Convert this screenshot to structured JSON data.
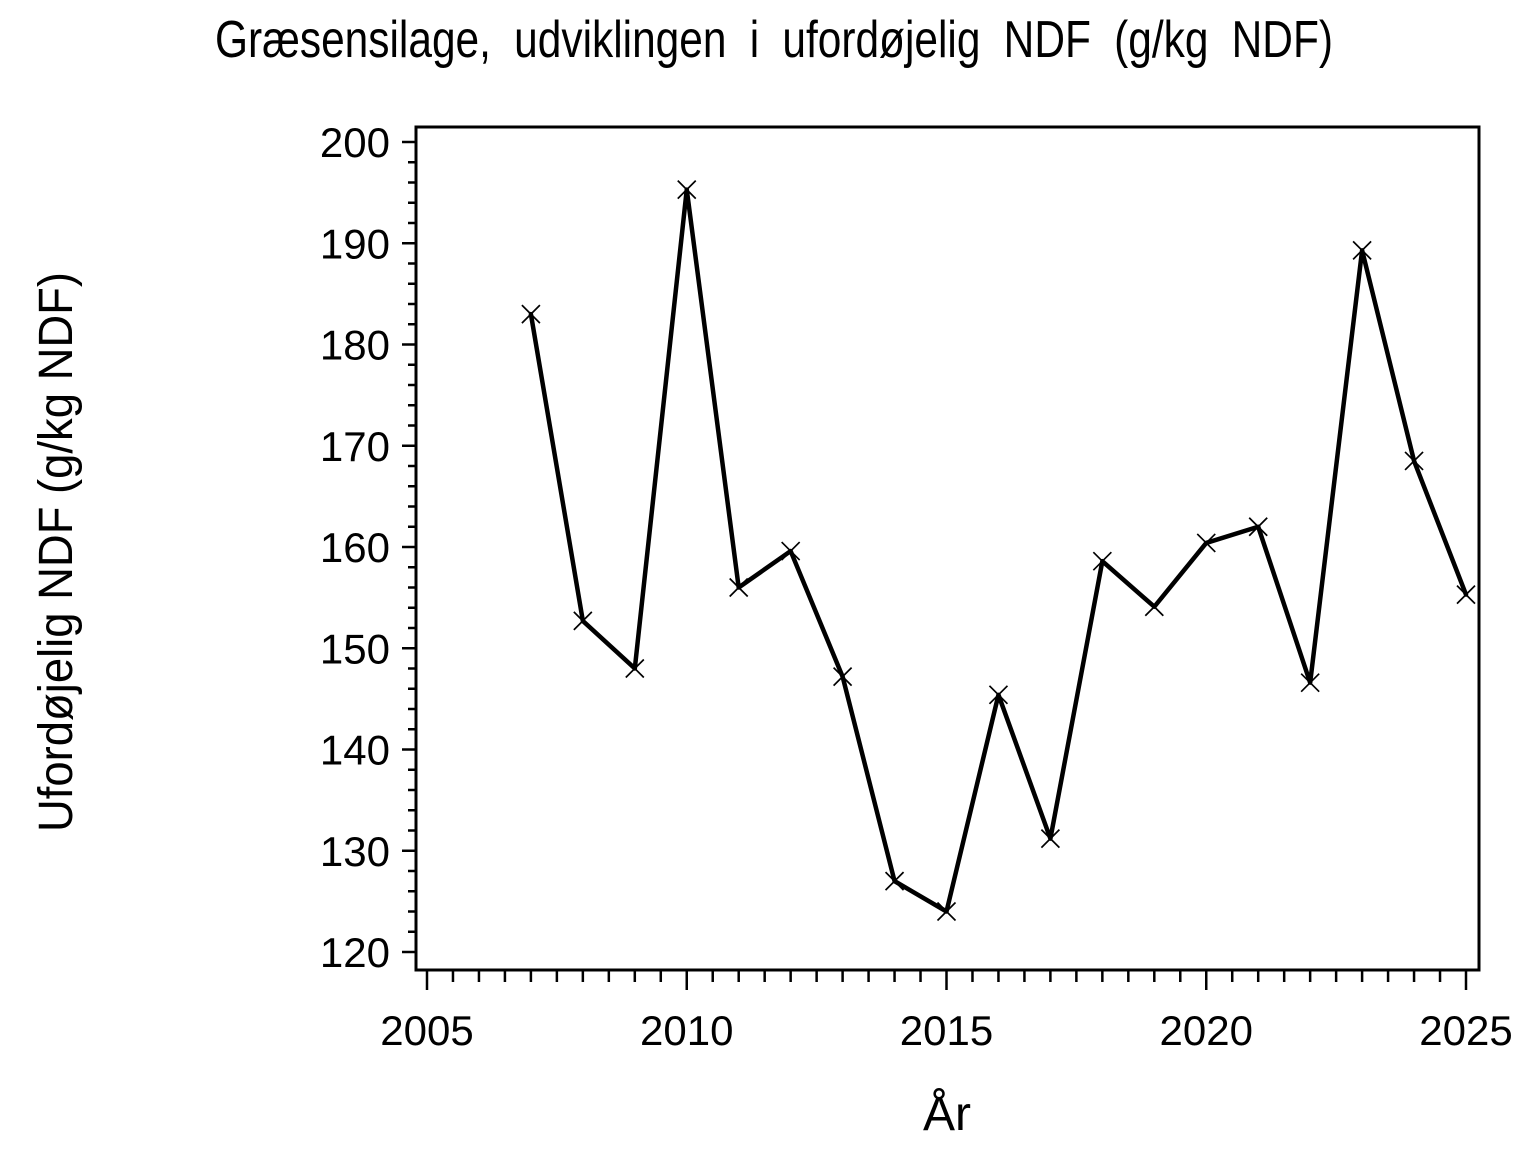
{
  "page": {
    "background": "#ffffff"
  },
  "chart_data": {
    "type": "line",
    "title": "Græsensilage, udviklingen i ufordøjelig NDF (g/kg NDF)",
    "xlabel": "År",
    "ylabel": "Ufordøjelig NDF (g/kg NDF)",
    "x_axis": {
      "label": "År",
      "min": 2005,
      "max": 2025,
      "major_step": 5,
      "minor_step": 0.5,
      "ticks": [
        2005,
        2010,
        2015,
        2020,
        2025
      ]
    },
    "y_axis": {
      "label": "Ufordøjelig NDF (g/kg NDF)",
      "min": 120,
      "max": 200,
      "major_step": 10,
      "minor_step": 2,
      "ticks": [
        120,
        130,
        140,
        150,
        160,
        170,
        180,
        190,
        200
      ]
    },
    "series": [
      {
        "marker": "x-cross",
        "color": "#000000",
        "x": [
          2007,
          2008,
          2009,
          2010,
          2011,
          2012,
          2013,
          2014,
          2015,
          2016,
          2017,
          2018,
          2019,
          2020,
          2021,
          2022,
          2023,
          2024,
          2025
        ],
        "values": [
          183.0,
          152.7,
          148.0,
          195.3,
          156.0,
          159.6,
          147.2,
          127.0,
          124.0,
          145.4,
          131.2,
          158.6,
          154.1,
          160.4,
          162.0,
          146.6,
          189.3,
          168.5,
          155.3
        ]
      }
    ],
    "grid": false,
    "legend": null,
    "colors": {
      "line": "#000000",
      "text": "#000000",
      "frame": "#000000",
      "background": "#ffffff"
    }
  }
}
